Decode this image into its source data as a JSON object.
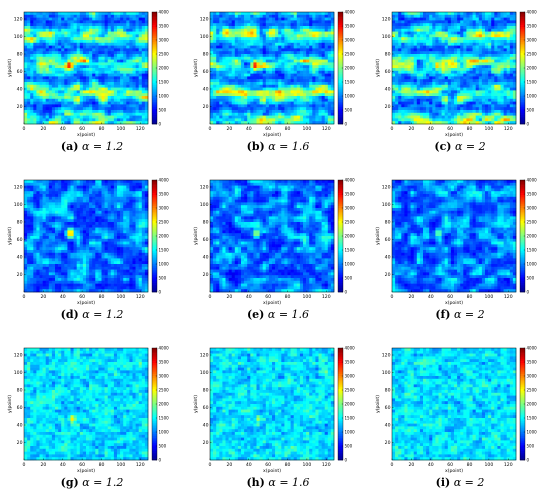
{
  "colormap": [
    "#00008f",
    "#0000ff",
    "#0080ff",
    "#00ffff",
    "#80ff80",
    "#ffff00",
    "#ff8000",
    "#ff0000",
    "#800000"
  ],
  "chart_data": [
    {
      "type": "heatmap",
      "tag": "(a)",
      "alpha_label": "α = 1.2",
      "xlabel": "x(point)",
      "ylabel": "y(point)",
      "xlim": [
        0,
        128
      ],
      "ylim": [
        0,
        128
      ],
      "x_ticks": [
        "0",
        "20",
        "40",
        "60",
        "80",
        "100",
        "120"
      ],
      "y_ticks": [
        "20",
        "40",
        "60",
        "80",
        "100",
        "120"
      ],
      "colorbar_ticks": [
        "0",
        "500",
        "1000",
        "1500",
        "2000",
        "2500",
        "3000",
        "3500",
        "4000"
      ],
      "clim": [
        0,
        4000
      ],
      "background_level": 0.4,
      "texture": "banded",
      "hotspots": [
        {
          "x": 47,
          "y": 67,
          "value": 3500
        },
        {
          "x": 55,
          "y": 28,
          "value": 2600
        }
      ]
    },
    {
      "type": "heatmap",
      "tag": "(b)",
      "alpha_label": "α = 1.6",
      "xlabel": "x(point)",
      "ylabel": "y(point)",
      "xlim": [
        0,
        128
      ],
      "ylim": [
        0,
        128
      ],
      "x_ticks": [
        "0",
        "20",
        "40",
        "60",
        "80",
        "100",
        "120"
      ],
      "y_ticks": [
        "20",
        "40",
        "60",
        "80",
        "100",
        "120"
      ],
      "colorbar_ticks": [
        "0",
        "500",
        "1000",
        "1500",
        "2000",
        "2500",
        "3000",
        "3500",
        "4000"
      ],
      "clim": [
        0,
        4000
      ],
      "background_level": 0.4,
      "texture": "banded",
      "hotspots": [
        {
          "x": 47,
          "y": 67,
          "value": 3500
        },
        {
          "x": 55,
          "y": 28,
          "value": 2500
        }
      ]
    },
    {
      "type": "heatmap",
      "tag": "(c)",
      "alpha_label": "α = 2",
      "xlabel": "x(point)",
      "ylabel": "y(point)",
      "xlim": [
        0,
        128
      ],
      "ylim": [
        0,
        128
      ],
      "x_ticks": [
        "0",
        "20",
        "40",
        "60",
        "80",
        "100",
        "120"
      ],
      "y_ticks": [
        "20",
        "40",
        "60",
        "80",
        "100",
        "120"
      ],
      "colorbar_ticks": [
        "0",
        "500",
        "1000",
        "1500",
        "2000",
        "2500",
        "3000",
        "3500",
        "4000"
      ],
      "clim": [
        0,
        4000
      ],
      "background_level": 0.42,
      "texture": "banded",
      "hotspots": [
        {
          "x": 47,
          "y": 67,
          "value": 2800
        },
        {
          "x": 55,
          "y": 28,
          "value": 2400
        }
      ]
    },
    {
      "type": "heatmap",
      "tag": "(d)",
      "alpha_label": "α = 1.2",
      "xlabel": "x(point)",
      "ylabel": "y(point)",
      "xlim": [
        0,
        128
      ],
      "ylim": [
        0,
        128
      ],
      "x_ticks": [
        "0",
        "20",
        "40",
        "60",
        "80",
        "100",
        "120"
      ],
      "y_ticks": [
        "20",
        "40",
        "60",
        "80",
        "100",
        "120"
      ],
      "colorbar_ticks": [
        "0",
        "500",
        "1000",
        "1500",
        "2000",
        "2500",
        "3000",
        "3500",
        "4000"
      ],
      "clim": [
        0,
        4000
      ],
      "background_level": 0.18,
      "texture": "blotchy",
      "hotspots": [
        {
          "x": 48,
          "y": 67,
          "value": 2900
        },
        {
          "x": 57,
          "y": 30,
          "value": 1600
        }
      ]
    },
    {
      "type": "heatmap",
      "tag": "(e)",
      "alpha_label": "α = 1.6",
      "xlabel": "x(point)",
      "ylabel": "y(point)",
      "xlim": [
        0,
        128
      ],
      "ylim": [
        0,
        128
      ],
      "x_ticks": [
        "0",
        "20",
        "40",
        "60",
        "80",
        "100",
        "120"
      ],
      "y_ticks": [
        "20",
        "40",
        "60",
        "80",
        "100",
        "120"
      ],
      "colorbar_ticks": [
        "0",
        "500",
        "1000",
        "1500",
        "2000",
        "2500",
        "3000",
        "3500",
        "4000"
      ],
      "clim": [
        0,
        4000
      ],
      "background_level": 0.18,
      "texture": "blotchy",
      "hotspots": [
        {
          "x": 48,
          "y": 67,
          "value": 2200
        },
        {
          "x": 57,
          "y": 30,
          "value": 1500
        }
      ]
    },
    {
      "type": "heatmap",
      "tag": "(f)",
      "alpha_label": "α = 2",
      "xlabel": "x(point)",
      "ylabel": "y(point)",
      "xlim": [
        0,
        128
      ],
      "ylim": [
        0,
        128
      ],
      "x_ticks": [
        "0",
        "20",
        "40",
        "60",
        "80",
        "100",
        "120"
      ],
      "y_ticks": [
        "20",
        "40",
        "60",
        "80",
        "100",
        "120"
      ],
      "colorbar_ticks": [
        "0",
        "500",
        "1000",
        "1500",
        "2000",
        "2500",
        "3000",
        "3500",
        "4000"
      ],
      "clim": [
        0,
        4000
      ],
      "background_level": 0.18,
      "texture": "blotchy",
      "hotspots": [
        {
          "x": 48,
          "y": 67,
          "value": 2000
        },
        {
          "x": 57,
          "y": 30,
          "value": 1400
        }
      ]
    },
    {
      "type": "heatmap",
      "tag": "(g)",
      "alpha_label": "α = 1.2",
      "xlabel": "x(point)",
      "ylabel": "y(point)",
      "xlim": [
        0,
        128
      ],
      "ylim": [
        0,
        128
      ],
      "x_ticks": [
        "0",
        "20",
        "40",
        "60",
        "80",
        "100",
        "120"
      ],
      "y_ticks": [
        "20",
        "40",
        "60",
        "80",
        "100",
        "120"
      ],
      "colorbar_ticks": [
        "0",
        "500",
        "1000",
        "1500",
        "2000",
        "2500",
        "3000",
        "3500",
        "4000"
      ],
      "clim": [
        0,
        4000
      ],
      "background_level": 0.3,
      "texture": "speckled",
      "hotspots": [
        {
          "x": 50,
          "y": 47,
          "value": 2600
        },
        {
          "x": 2,
          "y": 80,
          "value": 1700
        }
      ]
    },
    {
      "type": "heatmap",
      "tag": "(h)",
      "alpha_label": "α = 1.6",
      "xlabel": "x(point)",
      "ylabel": "y(point)",
      "xlim": [
        0,
        128
      ],
      "ylim": [
        0,
        128
      ],
      "x_ticks": [
        "0",
        "20",
        "40",
        "60",
        "80",
        "100",
        "120"
      ],
      "y_ticks": [
        "20",
        "40",
        "60",
        "80",
        "100",
        "120"
      ],
      "colorbar_ticks": [
        "0",
        "500",
        "1000",
        "1500",
        "2000",
        "2500",
        "3000",
        "3500",
        "4000"
      ],
      "clim": [
        0,
        4000
      ],
      "background_level": 0.3,
      "texture": "speckled",
      "hotspots": [
        {
          "x": 50,
          "y": 47,
          "value": 2200
        },
        {
          "x": 2,
          "y": 80,
          "value": 1700
        }
      ]
    },
    {
      "type": "heatmap",
      "tag": "(i)",
      "alpha_label": "α = 2",
      "xlabel": "x(point)",
      "ylabel": "y(point)",
      "xlim": [
        0,
        128
      ],
      "ylim": [
        0,
        128
      ],
      "x_ticks": [
        "0",
        "20",
        "40",
        "60",
        "80",
        "100",
        "120"
      ],
      "y_ticks": [
        "20",
        "40",
        "60",
        "80",
        "100",
        "120"
      ],
      "colorbar_ticks": [
        "0",
        "500",
        "1000",
        "1500",
        "2000",
        "2500",
        "3000",
        "3500",
        "4000"
      ],
      "clim": [
        0,
        4000
      ],
      "background_level": 0.3,
      "texture": "speckled",
      "hotspots": [
        {
          "x": 50,
          "y": 47,
          "value": 1800
        },
        {
          "x": 2,
          "y": 80,
          "value": 1700
        }
      ]
    }
  ]
}
